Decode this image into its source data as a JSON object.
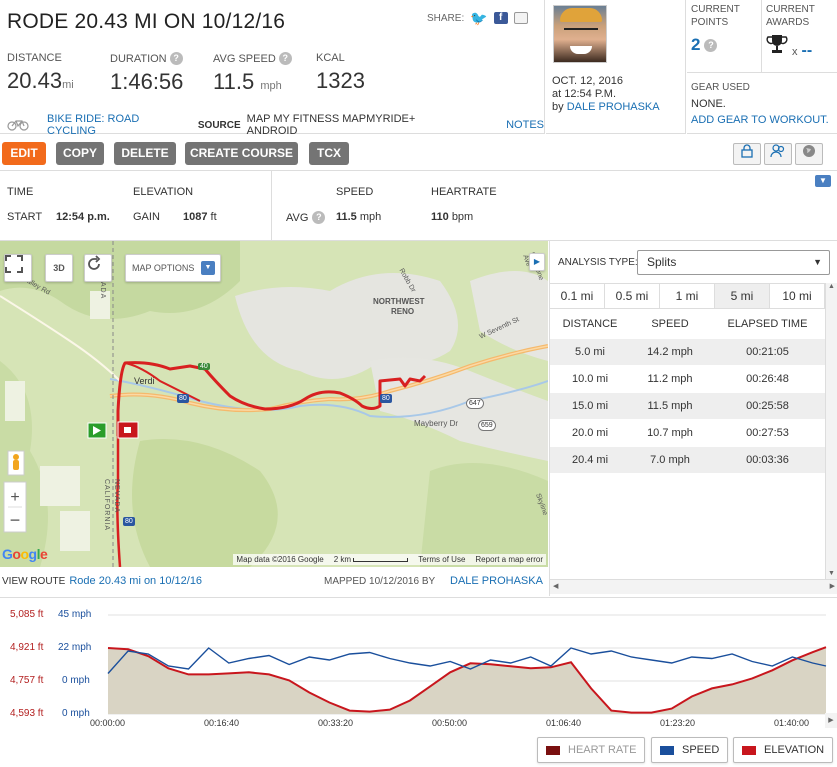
{
  "workout": {
    "title": "RODE 20.43 MI ON 10/12/16",
    "share_label": "SHARE:",
    "stats": [
      {
        "label": "DISTANCE",
        "value": "20.43",
        "unit": "mi"
      },
      {
        "label": "DURATION",
        "value": "1:46:56",
        "unit": ""
      },
      {
        "label": "AVG SPEED",
        "value": "11.5",
        "unit": "mph"
      },
      {
        "label": "KCAL",
        "value": "1323",
        "unit": ""
      }
    ],
    "activity_type": "BIKE RIDE: ROAD CYCLING",
    "source_label": "SOURCE",
    "source_value": "MAP MY FITNESS MAPMYRIDE+ ANDROID",
    "notes_label": "NOTES"
  },
  "user": {
    "date_line1": "OCT. 12, 2016",
    "date_line2": "at 12:54 P.M.",
    "by_label": "by",
    "name": "DALE PROHASKA"
  },
  "points": {
    "current_points_label": "CURRENT POINTS",
    "current_points_value": "2",
    "current_awards_label": "CURRENT AWARDS",
    "awards_x": "x",
    "awards_value": "--",
    "gear_label": "GEAR USED",
    "gear_value": "NONE.",
    "gear_link": "ADD GEAR TO WORKOUT."
  },
  "toolbar": {
    "edit": "EDIT",
    "copy": "COPY",
    "delete": "DELETE",
    "create_course": "CREATE COURSE",
    "tcx": "TCX"
  },
  "summary": {
    "time_label": "TIME",
    "start_label": "START",
    "start_value": "12:54 p.m.",
    "elevation_label": "ELEVATION",
    "gain_label": "GAIN",
    "gain_value": "1087",
    "gain_unit": "ft",
    "speed_label": "SPEED",
    "avg_label": "AVG",
    "avg_value": "11.5",
    "avg_unit": "mph",
    "hr_label": "HEARTRATE",
    "hr_value": "110",
    "hr_unit": "bpm"
  },
  "map": {
    "options_label": "MAP OPTIONS",
    "labels": {
      "verdi": "Verdi",
      "northwest": "NORTHWEST",
      "reno": "RENO",
      "mayberry": "Mayberry Dr",
      "seventh": "W Seventh St",
      "robb": "Robb Dr",
      "nevada": "NEVADA",
      "california": "CALIFORNIA",
      "dog_valley": "Dog Valley Rd",
      "keystone": "Keystone Ave",
      "sky": "Skyline",
      "s80a": "80",
      "s80b": "80",
      "s80c": "80",
      "s647": "647",
      "s659": "659",
      "s40": "40"
    },
    "attrib_data": "Map data ©2016 Google",
    "attrib_scale": "2 km",
    "attrib_terms": "Terms of Use",
    "attrib_report": "Report a map error",
    "google": "Google",
    "view_route_label": "VIEW ROUTE",
    "route_name": "Rode 20.43 mi on 10/12/16",
    "mapped_label": "MAPPED 10/12/2016 BY",
    "mapped_by": "DALE PROHASKA"
  },
  "analysis": {
    "type_label": "ANALYSIS TYPE:",
    "type_value": "Splits",
    "tabs": [
      "0.1 mi",
      "0.5 mi",
      "1 mi",
      "5 mi",
      "10 mi"
    ],
    "active_tab": "5 mi",
    "headers": [
      "DISTANCE",
      "SPEED",
      "ELAPSED TIME"
    ],
    "rows": [
      [
        "5.0 mi",
        "14.2 mph",
        "00:21:05"
      ],
      [
        "10.0 mi",
        "11.2 mph",
        "00:26:48"
      ],
      [
        "15.0 mi",
        "11.5 mph",
        "00:25:58"
      ],
      [
        "20.0 mi",
        "10.7 mph",
        "00:27:53"
      ],
      [
        "20.4 mi",
        "7.0 mph",
        "00:03:36"
      ]
    ]
  },
  "chart_data": {
    "type": "line",
    "y_left_ticks": [
      "5,085 ft",
      "4,921 ft",
      "4,757 ft",
      "4,593 ft"
    ],
    "y_right_ticks": [
      "45 mph",
      "22 mph",
      "0 mph",
      "0 mph"
    ],
    "x_ticks": [
      "00:00:00",
      "00:16:40",
      "00:33:20",
      "00:50:00",
      "01:06:40",
      "01:23:20",
      "01:40:00"
    ],
    "x_minutes": [
      0,
      3,
      6,
      9,
      12,
      15,
      18,
      21,
      24,
      27,
      30,
      33,
      36,
      39,
      42,
      45,
      48,
      51,
      54,
      57,
      60,
      63,
      66,
      69,
      72,
      75,
      78,
      81,
      84,
      87,
      90,
      93,
      96,
      99,
      102,
      105,
      107
    ],
    "elevation_ft": [
      4921,
      4915,
      4880,
      4820,
      4790,
      4790,
      4795,
      4800,
      4790,
      4760,
      4700,
      4650,
      4610,
      4605,
      4615,
      4660,
      4730,
      4800,
      4845,
      4840,
      4830,
      4820,
      4825,
      4850,
      4720,
      4610,
      4600,
      4600,
      4620,
      4680,
      4720,
      4740,
      4770,
      4810,
      4860,
      4900,
      4925
    ],
    "speed_mph": [
      5,
      20,
      18,
      10,
      8,
      22,
      12,
      15,
      17,
      11,
      16,
      14,
      18,
      19,
      15,
      12,
      10,
      13,
      8,
      14,
      12,
      16,
      10,
      22,
      18,
      20,
      16,
      14,
      12,
      16,
      15,
      18,
      13,
      10,
      16,
      12,
      10
    ],
    "series": [
      {
        "name": "HEART RATE",
        "color": "#7a1010",
        "enabled": false
      },
      {
        "name": "SPEED",
        "color": "#1a4f9c",
        "enabled": true
      },
      {
        "name": "ELEVATION",
        "color": "#c8161d",
        "enabled": true
      }
    ],
    "ylim_ft": [
      4593,
      5085
    ],
    "ylim_mph": [
      0,
      45
    ],
    "grid": true
  }
}
